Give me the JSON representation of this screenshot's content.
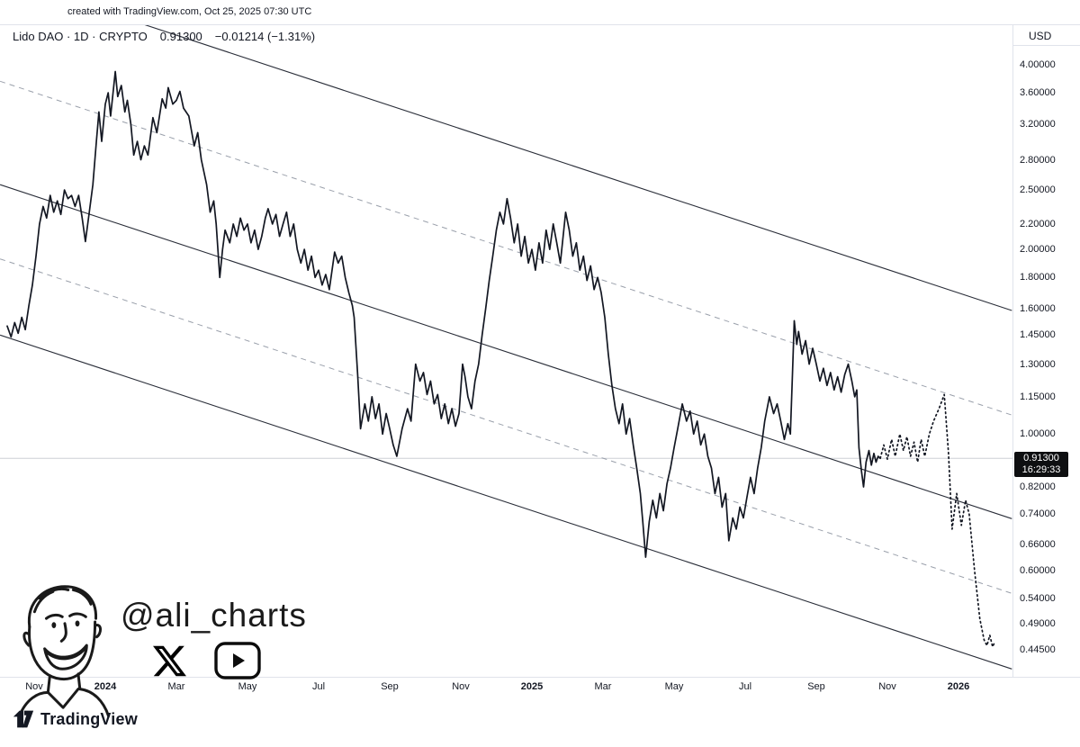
{
  "caption": "created with TradingView.com, Oct 25, 2025 07:30 UTC",
  "header": {
    "symbol": "Lido DAO · 1D · CRYPTO",
    "last_price": "0.91300",
    "change": "−0.01214 (−1.31%)",
    "currency": "USD"
  },
  "price_scale": {
    "ticks": [
      {
        "label": "4.00000",
        "value": 4.0
      },
      {
        "label": "3.60000",
        "value": 3.6
      },
      {
        "label": "3.20000",
        "value": 3.2
      },
      {
        "label": "2.80000",
        "value": 2.8
      },
      {
        "label": "2.50000",
        "value": 2.5
      },
      {
        "label": "2.20000",
        "value": 2.2
      },
      {
        "label": "2.00000",
        "value": 2.0
      },
      {
        "label": "1.80000",
        "value": 1.8
      },
      {
        "label": "1.60000",
        "value": 1.6
      },
      {
        "label": "1.45000",
        "value": 1.45
      },
      {
        "label": "1.30000",
        "value": 1.3
      },
      {
        "label": "1.15000",
        "value": 1.15
      },
      {
        "label": "1.00000",
        "value": 1.0
      },
      {
        "label": "0.82000",
        "value": 0.82
      },
      {
        "label": "0.74000",
        "value": 0.74
      },
      {
        "label": "0.66000",
        "value": 0.66
      },
      {
        "label": "0.60000",
        "value": 0.6
      },
      {
        "label": "0.54000",
        "value": 0.54
      },
      {
        "label": "0.49000",
        "value": 0.49
      },
      {
        "label": "0.44500",
        "value": 0.445
      }
    ],
    "badge": {
      "price": "0.91300",
      "countdown": "16:29:33",
      "value": 0.913
    }
  },
  "time_axis": {
    "labels": [
      {
        "text": "Nov",
        "m": 0,
        "bold": false
      },
      {
        "text": "2024",
        "m": 2,
        "bold": true
      },
      {
        "text": "Mar",
        "m": 4,
        "bold": false
      },
      {
        "text": "May",
        "m": 6,
        "bold": false
      },
      {
        "text": "Jul",
        "m": 8,
        "bold": false
      },
      {
        "text": "Sep",
        "m": 10,
        "bold": false
      },
      {
        "text": "Nov",
        "m": 12,
        "bold": false
      },
      {
        "text": "2025",
        "m": 14,
        "bold": true
      },
      {
        "text": "Mar",
        "m": 16,
        "bold": false
      },
      {
        "text": "May",
        "m": 18,
        "bold": false
      },
      {
        "text": "Jul",
        "m": 20,
        "bold": false
      },
      {
        "text": "Sep",
        "m": 22,
        "bold": false
      },
      {
        "text": "Nov",
        "m": 24,
        "bold": false
      },
      {
        "text": "2026",
        "m": 26,
        "bold": true
      }
    ]
  },
  "watermark": {
    "handle": "@ali_charts",
    "icons": [
      "x-logo",
      "youtube-logo"
    ]
  },
  "footer": {
    "brand": "TradingView"
  },
  "chart_data": {
    "type": "line",
    "title": "Lido DAO (LDO/USD) daily, log scale, descending parallel channels with dotted projected path",
    "symbol": "LDO/USD",
    "timeframe": "1D",
    "scale": "log",
    "x_unit": "months since 2023-11-01",
    "xlim_months": [
      -0.96,
      27.5
    ],
    "ylim": [
      0.43,
      4.6
    ],
    "current_price": 0.913,
    "price_line": [
      [
        -0.76,
        1.5
      ],
      [
        -0.65,
        1.44
      ],
      [
        -0.55,
        1.52
      ],
      [
        -0.45,
        1.46
      ],
      [
        -0.35,
        1.55
      ],
      [
        -0.25,
        1.48
      ],
      [
        -0.15,
        1.62
      ],
      [
        -0.05,
        1.75
      ],
      [
        0.05,
        1.95
      ],
      [
        0.15,
        2.2
      ],
      [
        0.25,
        2.35
      ],
      [
        0.35,
        2.25
      ],
      [
        0.45,
        2.45
      ],
      [
        0.55,
        2.3
      ],
      [
        0.65,
        2.4
      ],
      [
        0.75,
        2.28
      ],
      [
        0.85,
        2.5
      ],
      [
        0.95,
        2.42
      ],
      [
        1.05,
        2.45
      ],
      [
        1.15,
        2.35
      ],
      [
        1.25,
        2.45
      ],
      [
        1.35,
        2.25
      ],
      [
        1.44,
        2.06
      ],
      [
        1.55,
        2.3
      ],
      [
        1.65,
        2.55
      ],
      [
        1.75,
        3.0
      ],
      [
        1.82,
        3.35
      ],
      [
        1.9,
        3.0
      ],
      [
        2.0,
        3.45
      ],
      [
        2.08,
        3.6
      ],
      [
        2.15,
        3.3
      ],
      [
        2.28,
        3.9
      ],
      [
        2.35,
        3.55
      ],
      [
        2.45,
        3.7
      ],
      [
        2.55,
        3.35
      ],
      [
        2.62,
        3.5
      ],
      [
        2.72,
        3.2
      ],
      [
        2.8,
        2.85
      ],
      [
        2.9,
        3.0
      ],
      [
        3.0,
        2.8
      ],
      [
        3.1,
        2.95
      ],
      [
        3.2,
        2.85
      ],
      [
        3.34,
        3.28
      ],
      [
        3.45,
        3.1
      ],
      [
        3.6,
        3.52
      ],
      [
        3.7,
        3.4
      ],
      [
        3.77,
        3.67
      ],
      [
        3.9,
        3.45
      ],
      [
        4.0,
        3.5
      ],
      [
        4.1,
        3.62
      ],
      [
        4.2,
        3.4
      ],
      [
        4.35,
        3.3
      ],
      [
        4.5,
        2.95
      ],
      [
        4.6,
        3.1
      ],
      [
        4.7,
        2.8
      ],
      [
        4.85,
        2.55
      ],
      [
        4.95,
        2.3
      ],
      [
        5.05,
        2.4
      ],
      [
        5.12,
        2.2
      ],
      [
        5.22,
        1.8
      ],
      [
        5.3,
        2.0
      ],
      [
        5.37,
        2.15
      ],
      [
        5.5,
        2.05
      ],
      [
        5.6,
        2.2
      ],
      [
        5.7,
        2.1
      ],
      [
        5.8,
        2.25
      ],
      [
        5.9,
        2.15
      ],
      [
        6.0,
        2.2
      ],
      [
        6.1,
        2.05
      ],
      [
        6.2,
        2.15
      ],
      [
        6.3,
        2.0
      ],
      [
        6.4,
        2.1
      ],
      [
        6.5,
        2.25
      ],
      [
        6.58,
        2.33
      ],
      [
        6.7,
        2.2
      ],
      [
        6.8,
        2.28
      ],
      [
        6.9,
        2.1
      ],
      [
        7.0,
        2.2
      ],
      [
        7.1,
        2.3
      ],
      [
        7.2,
        2.1
      ],
      [
        7.3,
        2.2
      ],
      [
        7.4,
        2.0
      ],
      [
        7.5,
        1.9
      ],
      [
        7.6,
        2.0
      ],
      [
        7.7,
        1.85
      ],
      [
        7.8,
        1.95
      ],
      [
        7.9,
        1.8
      ],
      [
        8.0,
        1.85
      ],
      [
        8.1,
        1.75
      ],
      [
        8.2,
        1.82
      ],
      [
        8.3,
        1.72
      ],
      [
        8.45,
        1.98
      ],
      [
        8.55,
        1.9
      ],
      [
        8.65,
        1.95
      ],
      [
        8.75,
        1.8
      ],
      [
        8.85,
        1.7
      ],
      [
        8.95,
        1.62
      ],
      [
        9.0,
        1.55
      ],
      [
        9.1,
        1.25
      ],
      [
        9.18,
        1.02
      ],
      [
        9.3,
        1.12
      ],
      [
        9.4,
        1.05
      ],
      [
        9.5,
        1.15
      ],
      [
        9.6,
        1.06
      ],
      [
        9.7,
        1.12
      ],
      [
        9.8,
        1.0
      ],
      [
        9.9,
        1.08
      ],
      [
        10.0,
        1.02
      ],
      [
        10.1,
        0.96
      ],
      [
        10.2,
        0.92
      ],
      [
        10.35,
        1.02
      ],
      [
        10.5,
        1.1
      ],
      [
        10.6,
        1.05
      ],
      [
        10.73,
        1.3
      ],
      [
        10.85,
        1.22
      ],
      [
        10.95,
        1.26
      ],
      [
        11.05,
        1.16
      ],
      [
        11.15,
        1.22
      ],
      [
        11.25,
        1.12
      ],
      [
        11.35,
        1.16
      ],
      [
        11.45,
        1.06
      ],
      [
        11.55,
        1.12
      ],
      [
        11.65,
        1.04
      ],
      [
        11.75,
        1.1
      ],
      [
        11.85,
        1.03
      ],
      [
        11.95,
        1.08
      ],
      [
        12.05,
        1.3
      ],
      [
        12.12,
        1.24
      ],
      [
        12.2,
        1.15
      ],
      [
        12.3,
        1.1
      ],
      [
        12.4,
        1.22
      ],
      [
        12.5,
        1.3
      ],
      [
        12.6,
        1.45
      ],
      [
        12.7,
        1.6
      ],
      [
        12.8,
        1.78
      ],
      [
        12.9,
        1.95
      ],
      [
        13.0,
        2.15
      ],
      [
        13.1,
        2.3
      ],
      [
        13.2,
        2.2
      ],
      [
        13.3,
        2.42
      ],
      [
        13.4,
        2.25
      ],
      [
        13.5,
        2.05
      ],
      [
        13.6,
        2.2
      ],
      [
        13.7,
        1.95
      ],
      [
        13.8,
        2.1
      ],
      [
        13.9,
        1.9
      ],
      [
        14.0,
        2.0
      ],
      [
        14.1,
        1.85
      ],
      [
        14.2,
        2.05
      ],
      [
        14.3,
        1.9
      ],
      [
        14.4,
        2.15
      ],
      [
        14.5,
        2.0
      ],
      [
        14.6,
        2.2
      ],
      [
        14.7,
        2.05
      ],
      [
        14.8,
        1.9
      ],
      [
        14.95,
        2.3
      ],
      [
        15.05,
        2.15
      ],
      [
        15.15,
        1.95
      ],
      [
        15.25,
        2.05
      ],
      [
        15.35,
        1.85
      ],
      [
        15.45,
        1.95
      ],
      [
        15.55,
        1.78
      ],
      [
        15.65,
        1.88
      ],
      [
        15.75,
        1.72
      ],
      [
        15.85,
        1.8
      ],
      [
        15.95,
        1.7
      ],
      [
        16.05,
        1.55
      ],
      [
        16.15,
        1.35
      ],
      [
        16.25,
        1.2
      ],
      [
        16.35,
        1.1
      ],
      [
        16.45,
        1.04
      ],
      [
        16.55,
        1.12
      ],
      [
        16.65,
        1.0
      ],
      [
        16.75,
        1.06
      ],
      [
        16.85,
        0.96
      ],
      [
        16.95,
        0.88
      ],
      [
        17.05,
        0.8
      ],
      [
        17.12,
        0.72
      ],
      [
        17.2,
        0.63
      ],
      [
        17.3,
        0.72
      ],
      [
        17.4,
        0.78
      ],
      [
        17.5,
        0.73
      ],
      [
        17.6,
        0.8
      ],
      [
        17.7,
        0.75
      ],
      [
        17.8,
        0.83
      ],
      [
        17.9,
        0.88
      ],
      [
        18.0,
        0.95
      ],
      [
        18.1,
        1.02
      ],
      [
        18.23,
        1.12
      ],
      [
        18.35,
        1.05
      ],
      [
        18.45,
        1.09
      ],
      [
        18.55,
        1.0
      ],
      [
        18.65,
        1.05
      ],
      [
        18.75,
        0.96
      ],
      [
        18.85,
        1.0
      ],
      [
        18.95,
        0.92
      ],
      [
        19.05,
        0.88
      ],
      [
        19.15,
        0.8
      ],
      [
        19.25,
        0.85
      ],
      [
        19.35,
        0.76
      ],
      [
        19.45,
        0.8
      ],
      [
        19.54,
        0.67
      ],
      [
        19.65,
        0.73
      ],
      [
        19.75,
        0.7
      ],
      [
        19.85,
        0.76
      ],
      [
        19.95,
        0.73
      ],
      [
        20.05,
        0.79
      ],
      [
        20.15,
        0.85
      ],
      [
        20.25,
        0.8
      ],
      [
        20.35,
        0.88
      ],
      [
        20.45,
        0.95
      ],
      [
        20.55,
        1.05
      ],
      [
        20.68,
        1.15
      ],
      [
        20.8,
        1.08
      ],
      [
        20.9,
        1.12
      ],
      [
        21.0,
        1.05
      ],
      [
        21.1,
        0.98
      ],
      [
        21.2,
        1.04
      ],
      [
        21.27,
        1.0
      ],
      [
        21.33,
        1.25
      ],
      [
        21.38,
        1.53
      ],
      [
        21.45,
        1.4
      ],
      [
        21.5,
        1.47
      ],
      [
        21.6,
        1.35
      ],
      [
        21.7,
        1.42
      ],
      [
        21.8,
        1.3
      ],
      [
        21.9,
        1.38
      ],
      [
        22.0,
        1.3
      ],
      [
        22.1,
        1.22
      ],
      [
        22.2,
        1.28
      ],
      [
        22.3,
        1.2
      ],
      [
        22.4,
        1.26
      ],
      [
        22.5,
        1.18
      ],
      [
        22.6,
        1.24
      ],
      [
        22.7,
        1.17
      ],
      [
        22.8,
        1.25
      ],
      [
        22.9,
        1.3
      ],
      [
        23.0,
        1.22
      ],
      [
        23.08,
        1.15
      ],
      [
        23.14,
        1.18
      ],
      [
        23.2,
        0.95
      ],
      [
        23.27,
        0.87
      ],
      [
        23.33,
        0.82
      ],
      [
        23.4,
        0.9
      ],
      [
        23.48,
        0.94
      ],
      [
        23.55,
        0.89
      ],
      [
        23.62,
        0.93
      ],
      [
        23.68,
        0.9
      ],
      [
        23.74,
        0.92
      ],
      [
        23.8,
        0.913
      ]
    ],
    "forecast_line": [
      [
        23.8,
        0.913
      ],
      [
        23.9,
        0.96
      ],
      [
        24.0,
        0.91
      ],
      [
        24.12,
        0.98
      ],
      [
        24.22,
        0.92
      ],
      [
        24.35,
        1.0
      ],
      [
        24.45,
        0.94
      ],
      [
        24.55,
        0.99
      ],
      [
        24.65,
        0.92
      ],
      [
        24.75,
        0.97
      ],
      [
        24.85,
        0.9
      ],
      [
        24.95,
        0.98
      ],
      [
        25.05,
        0.92
      ],
      [
        25.18,
        1.0
      ],
      [
        25.3,
        1.05
      ],
      [
        25.45,
        1.1
      ],
      [
        25.6,
        1.16
      ],
      [
        25.72,
        0.93
      ],
      [
        25.82,
        0.7
      ],
      [
        25.95,
        0.8
      ],
      [
        26.08,
        0.71
      ],
      [
        26.2,
        0.78
      ],
      [
        26.3,
        0.74
      ],
      [
        26.45,
        0.6
      ],
      [
        26.6,
        0.5
      ],
      [
        26.72,
        0.462
      ],
      [
        26.8,
        0.452
      ],
      [
        26.88,
        0.47
      ],
      [
        26.96,
        0.45
      ],
      [
        27.02,
        0.458
      ]
    ],
    "channel_lines": [
      {
        "style": "solid",
        "from": [
          -0.96,
          5.56
        ],
        "to": [
          27.5,
          1.59
        ]
      },
      {
        "style": "dashed",
        "from": [
          -0.96,
          3.76
        ],
        "to": [
          27.5,
          1.074
        ]
      },
      {
        "style": "solid",
        "from": [
          -0.96,
          2.55
        ],
        "to": [
          27.5,
          0.728
        ]
      },
      {
        "style": "dashed",
        "from": [
          -0.96,
          1.93
        ],
        "to": [
          27.5,
          0.55
        ]
      },
      {
        "style": "solid",
        "from": [
          -0.96,
          1.45
        ],
        "to": [
          27.5,
          0.414
        ]
      }
    ],
    "colors": {
      "line": "#131722",
      "forecast": "#131722",
      "channel_solid": "#2a2e39",
      "channel_dashed": "#9aa0ab",
      "price_level_line": "#cdd0d6",
      "badge_bg": "#0e0f11",
      "badge_text": "#ffffff"
    }
  }
}
